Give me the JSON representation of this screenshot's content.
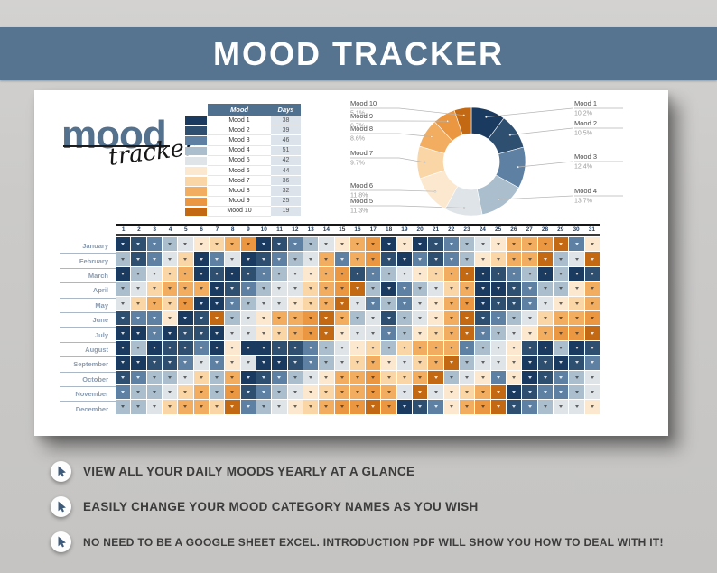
{
  "banner": {
    "title": "MOOD TRACKER",
    "bg_color": "#56748f"
  },
  "logo": {
    "word1": "mood",
    "word2": "tracker"
  },
  "legend_table": {
    "headers": [
      "Mood",
      "Days"
    ]
  },
  "moods": [
    {
      "label": "Mood 1",
      "days": 38,
      "percent": "10.2%",
      "color": "#1b3a5f"
    },
    {
      "label": "Mood 2",
      "days": 39,
      "percent": "10.5%",
      "color": "#2f4f71"
    },
    {
      "label": "Mood 3",
      "days": 46,
      "percent": "12.4%",
      "color": "#5e81a3"
    },
    {
      "label": "Mood 4",
      "days": 51,
      "percent": "13.7%",
      "color": "#aabecd"
    },
    {
      "label": "Mood 5",
      "days": 42,
      "percent": "11.3%",
      "color": "#dfe4e9"
    },
    {
      "label": "Mood 6",
      "days": 44,
      "percent": "11.8%",
      "color": "#fce8cf"
    },
    {
      "label": "Mood 7",
      "days": 36,
      "percent": "9.7%",
      "color": "#fad5a6"
    },
    {
      "label": "Mood 8",
      "days": 32,
      "percent": "8.6%",
      "color": "#f2ad61"
    },
    {
      "label": "Mood 9",
      "days": 25,
      "percent": "6.7%",
      "color": "#eb9741"
    },
    {
      "label": "Mood 10",
      "days": 19,
      "percent": "5.1%",
      "color": "#c36914"
    }
  ],
  "chart_data": {
    "type": "pie",
    "subtype": "donut",
    "hole": 0.52,
    "labels": [
      "Mood 1",
      "Mood 2",
      "Mood 3",
      "Mood 4",
      "Mood 5",
      "Mood 6",
      "Mood 7",
      "Mood 8",
      "Mood 9",
      "Mood 10"
    ],
    "values": [
      38,
      39,
      46,
      51,
      42,
      44,
      36,
      32,
      25,
      19
    ],
    "percent_labels": [
      "10.2%",
      "10.5%",
      "12.4%",
      "13.7%",
      "11.3%",
      "11.8%",
      "9.7%",
      "8.6%",
      "6.7%",
      "5.1%"
    ],
    "colors": [
      "#1b3a5f",
      "#2f4f71",
      "#5e81a3",
      "#aabecd",
      "#dfe4e9",
      "#fce8cf",
      "#fad5a6",
      "#f2ad61",
      "#eb9741",
      "#c36914"
    ],
    "legend_position": "callout labels left and right with leader lines",
    "start_angle_deg": 0,
    "direction": "clockwise"
  },
  "calendar": {
    "day_columns": [
      "1",
      "2",
      "3",
      "4",
      "5",
      "6",
      "7",
      "8",
      "9",
      "10",
      "11",
      "12",
      "13",
      "14",
      "15",
      "16",
      "17",
      "18",
      "19",
      "20",
      "21",
      "22",
      "23",
      "24",
      "25",
      "26",
      "27",
      "28",
      "29",
      "30",
      "31"
    ],
    "months": [
      "January",
      "February",
      "March",
      "April",
      "May",
      "June",
      "July",
      "August",
      "September",
      "October",
      "November",
      "December"
    ],
    "grid": [
      [
        1,
        2,
        3,
        4,
        5,
        6,
        7,
        8,
        9,
        1,
        2,
        3,
        4,
        5,
        6,
        8,
        9,
        1,
        6,
        1,
        2,
        3,
        4,
        5,
        6,
        8,
        8,
        9,
        10,
        3,
        6
      ],
      [
        4,
        2,
        3,
        5,
        7,
        1,
        3,
        5,
        1,
        2,
        3,
        4,
        5,
        8,
        3,
        8,
        9,
        2,
        1,
        3,
        2,
        3,
        4,
        6,
        7,
        8,
        8,
        10,
        4,
        5,
        10
      ],
      [
        1,
        4,
        5,
        7,
        8,
        1,
        2,
        1,
        2,
        3,
        4,
        5,
        6,
        8,
        9,
        2,
        3,
        4,
        5,
        6,
        7,
        8,
        10,
        1,
        2,
        3,
        4,
        1,
        4,
        1,
        2
      ],
      [
        4,
        5,
        7,
        8,
        8,
        8,
        1,
        2,
        3,
        4,
        5,
        5,
        7,
        8,
        9,
        10,
        4,
        1,
        3,
        4,
        5,
        7,
        8,
        1,
        1,
        2,
        3,
        4,
        4,
        6,
        8
      ],
      [
        5,
        7,
        8,
        7,
        9,
        1,
        1,
        3,
        4,
        5,
        5,
        6,
        7,
        8,
        10,
        5,
        3,
        4,
        3,
        5,
        6,
        8,
        9,
        1,
        2,
        2,
        3,
        5,
        6,
        7,
        8
      ],
      [
        2,
        3,
        3,
        6,
        1,
        2,
        10,
        4,
        5,
        6,
        8,
        8,
        9,
        10,
        8,
        4,
        5,
        2,
        4,
        5,
        6,
        8,
        10,
        2,
        3,
        4,
        5,
        7,
        8,
        8,
        9
      ],
      [
        1,
        1,
        3,
        1,
        2,
        2,
        1,
        5,
        5,
        6,
        7,
        8,
        9,
        10,
        6,
        5,
        5,
        3,
        4,
        6,
        7,
        8,
        10,
        3,
        4,
        5,
        6,
        8,
        9,
        9,
        10
      ],
      [
        1,
        4,
        1,
        2,
        2,
        3,
        1,
        6,
        1,
        1,
        2,
        2,
        3,
        4,
        5,
        6,
        7,
        4,
        7,
        8,
        8,
        8,
        3,
        4,
        5,
        6,
        2,
        1,
        4,
        1,
        2
      ],
      [
        1,
        1,
        2,
        2,
        3,
        5,
        3,
        6,
        5,
        1,
        1,
        2,
        3,
        4,
        5,
        7,
        8,
        6,
        5,
        7,
        8,
        10,
        4,
        5,
        5,
        6,
        1,
        2,
        1,
        2,
        3
      ],
      [
        2,
        3,
        4,
        4,
        5,
        7,
        4,
        8,
        1,
        2,
        3,
        4,
        5,
        6,
        8,
        8,
        9,
        7,
        7,
        8,
        10,
        4,
        5,
        6,
        3,
        6,
        1,
        2,
        3,
        4,
        5
      ],
      [
        3,
        4,
        4,
        5,
        7,
        8,
        4,
        9,
        2,
        3,
        4,
        5,
        6,
        7,
        8,
        8,
        9,
        8,
        5,
        10,
        5,
        6,
        7,
        8,
        10,
        1,
        2,
        3,
        3,
        4,
        5
      ],
      [
        4,
        4,
        5,
        7,
        8,
        8,
        7,
        10,
        3,
        4,
        5,
        6,
        7,
        8,
        9,
        9,
        10,
        9,
        1,
        2,
        3,
        6,
        8,
        9,
        10,
        2,
        3,
        4,
        5,
        5,
        6
      ]
    ]
  },
  "features": [
    {
      "text": "VIEW ALL YOUR DAILY MOODS YEARLY AT A GLANCE"
    },
    {
      "text": "EASILY CHANGE YOUR MOOD CATEGORY NAMES AS YOU WISH"
    },
    {
      "text": "NO NEED TO BE A GOOGLE SHEET EXCEL. INTRODUCTION PDF WILL SHOW YOU HOW TO DEAL WITH IT!"
    }
  ],
  "accent_colors": {
    "banner": "#56748f",
    "cursor_icon": "#3d5a7a",
    "table_header": "#50708f"
  }
}
